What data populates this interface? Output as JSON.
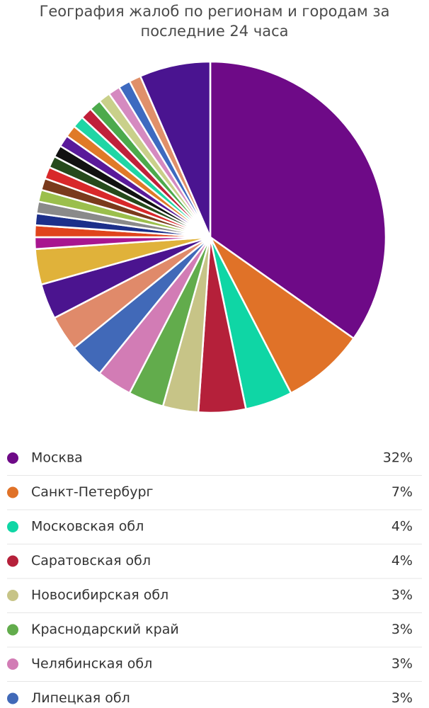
{
  "chart_data": {
    "type": "pie",
    "title": "География жалоб по регионам и городам за последние 24 часа",
    "categories": [
      "Москва",
      "Санкт-Петербург",
      "Московская обл",
      "Саратовская обл",
      "Новосибирская обл",
      "Краснодарский край",
      "Челябинская обл",
      "Липецкая обл",
      null,
      null,
      null,
      null,
      null,
      null,
      null,
      null,
      null,
      null,
      null,
      null,
      null,
      null,
      null,
      null,
      null,
      null,
      null,
      null,
      null,
      null
    ],
    "values": [
      32,
      7,
      4,
      4,
      3,
      3,
      3,
      3,
      3,
      3,
      3,
      1,
      1,
      1,
      1,
      1,
      1,
      1,
      1,
      1,
      1,
      1,
      1,
      1,
      1,
      1,
      1,
      1,
      1,
      6
    ],
    "value_labels": [
      "32%",
      "7%",
      "4%",
      "4%",
      "3%",
      "3%",
      "3%",
      "3%",
      null,
      null,
      null,
      null,
      null,
      null,
      null,
      null,
      null,
      null,
      null,
      null,
      null,
      null,
      null,
      null,
      null,
      null,
      null,
      null,
      null,
      null
    ],
    "colors": [
      "#6e0a87",
      "#e07228",
      "#0fd6a5",
      "#b5203a",
      "#c7c487",
      "#62ac4c",
      "#d27cb5",
      "#4169b8",
      "#e08a6a",
      "#4b148f",
      "#e0b23a",
      "#a8168f",
      "#e0441c",
      "#1c2f8a",
      "#8a8a8a",
      "#9bbf4c",
      "#7a3a1c",
      "#d8282a",
      "#264a1c",
      "#111111",
      "#5a1a9a",
      "#e07a28",
      "#1fd6a5",
      "#c0203a",
      "#4caa4c",
      "#c9d08a",
      "#d58ac0",
      "#3d6ac0",
      "#e0906a",
      "#4a1490"
    ]
  }
}
